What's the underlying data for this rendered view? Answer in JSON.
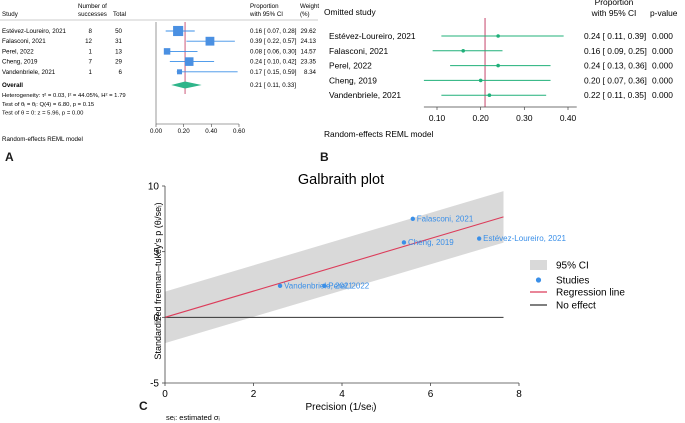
{
  "panel_labels": {
    "a": "A",
    "b": "B",
    "c": "C"
  },
  "chart_data": [
    {
      "type": "forest",
      "panel": "A",
      "headers": {
        "study": "Study",
        "successes": "Number of successes",
        "total": "Total",
        "prop": "Proportion with 95% CI",
        "weight": "Weight (%)"
      },
      "studies": [
        {
          "name": "Estévez-Loureiro, 2021",
          "successes": "8",
          "total": "50",
          "est": 0.16,
          "lo": 0.07,
          "hi": 0.28,
          "ci_text": "0.16 [ 0.07, 0.28]",
          "weight": "29.62",
          "weight_value": 29.62
        },
        {
          "name": "Falasconi, 2021",
          "successes": "12",
          "total": "31",
          "est": 0.39,
          "lo": 0.22,
          "hi": 0.57,
          "ci_text": "0.39 [ 0.22, 0.57]",
          "weight": "24.13",
          "weight_value": 24.13
        },
        {
          "name": "Perel, 2022",
          "successes": "1",
          "total": "13",
          "est": 0.08,
          "lo": 0.06,
          "hi": 0.3,
          "ci_text": "0.08 [ 0.06, 0.30]",
          "weight": "14.57",
          "weight_value": 14.57
        },
        {
          "name": "Cheng, 2019",
          "successes": "7",
          "total": "29",
          "est": 0.24,
          "lo": 0.1,
          "hi": 0.42,
          "ci_text": "0.24 [ 0.10, 0.42]",
          "weight": "23.35",
          "weight_value": 23.35
        },
        {
          "name": "Vandenbriele, 2021",
          "successes": "1",
          "total": "6",
          "est": 0.17,
          "lo": 0.15,
          "hi": 0.59,
          "ci_text": "0.17 [ 0.15, 0.59]",
          "weight": "8.34",
          "weight_value": 8.34
        }
      ],
      "overall": {
        "label": "Overall",
        "est": 0.21,
        "lo": 0.11,
        "hi": 0.33,
        "ci_text": "0.21 [ 0.11, 0.33]"
      },
      "stats": [
        "Heterogeneity: τ² = 0.03, I² = 44.05%, H² = 1.79",
        "Test of θᵢ = θⱼ: Q(4) = 6.80, p = 0.15",
        "Test of θ = 0: z = 5.96, p = 0.00"
      ],
      "xticks": [
        "0.00",
        "0.20",
        "0.40",
        "0.60"
      ],
      "xlim": [
        0,
        0.6
      ],
      "footnote": "Random-effects REML model"
    },
    {
      "type": "forest",
      "panel": "B",
      "headers": {
        "study": "Omitted study",
        "prop": "Proportion with 95% CI",
        "pvalue": "p-value"
      },
      "studies": [
        {
          "name": "Estévez-Loureiro, 2021",
          "est": 0.24,
          "lo": 0.11,
          "hi": 0.39,
          "ci_text": "0.24 [ 0.11, 0.39]",
          "p": "0.000"
        },
        {
          "name": "Falasconi, 2021",
          "est": 0.16,
          "lo": 0.09,
          "hi": 0.25,
          "ci_text": "0.16 [ 0.09, 0.25]",
          "p": "0.000"
        },
        {
          "name": "Perel, 2022",
          "est": 0.24,
          "lo": 0.13,
          "hi": 0.36,
          "ci_text": "0.24 [ 0.13, 0.36]",
          "p": "0.000"
        },
        {
          "name": "Cheng, 2019",
          "est": 0.2,
          "lo": 0.07,
          "hi": 0.36,
          "ci_text": "0.20 [ 0.07, 0.36]",
          "p": "0.000"
        },
        {
          "name": "Vandenbriele, 2021",
          "est": 0.22,
          "lo": 0.11,
          "hi": 0.35,
          "ci_text": "0.22 [ 0.11, 0.35]",
          "p": "0.000"
        }
      ],
      "refline": 0.21,
      "xticks": [
        "0.10",
        "0.20",
        "0.30",
        "0.40"
      ],
      "xlim": [
        0.07,
        0.42
      ],
      "footnote": "Random-effects REML model"
    },
    {
      "type": "scatter",
      "panel": "C",
      "title": "Galbraith plot",
      "xlabel": "Precision (1/seᵢ)",
      "ylabel": "Standardized freeman–tukey's p (θᵢ/seᵢ)",
      "xlim": [
        0,
        8
      ],
      "ylim": [
        -5,
        10
      ],
      "xticks": [
        "0",
        "2",
        "4",
        "6",
        "8"
      ],
      "yticks": [
        "-5",
        "0",
        "5",
        "10"
      ],
      "points": [
        {
          "label": "Falasconi, 2021",
          "x": 5.6,
          "y": 7.5
        },
        {
          "label": "Estévez-Loureiro, 2021",
          "x": 7.1,
          "y": 6.0
        },
        {
          "label": "Cheng, 2019",
          "x": 5.4,
          "y": 5.7
        },
        {
          "label": "Vandenbriele, 2021",
          "x": 2.6,
          "y": 2.4
        },
        {
          "label": "Perel, 2022",
          "x": 3.6,
          "y": 2.4
        }
      ],
      "regression": {
        "intercept": 0,
        "slope": 1.0,
        "x_end": 7.65
      },
      "ci_band_halfwidth": 1.96,
      "legend": [
        {
          "label": "95% CI",
          "kind": "band",
          "color": "#d9d9d9"
        },
        {
          "label": "Studies",
          "kind": "point",
          "color": "#3a8fe8"
        },
        {
          "label": "Regression line",
          "kind": "line",
          "color": "#dc3c5a"
        },
        {
          "label": "No effect",
          "kind": "line",
          "color": "#333333"
        }
      ],
      "legend_position": "right",
      "footnote": "seᵢ: estimated σᵢ"
    }
  ],
  "colors": {
    "square": "#4a90e2",
    "ci": "#3a8fe8",
    "overall": "#2fb58a",
    "refline": "#c0305a",
    "green": "#20b07a",
    "band": "#d9d9d9",
    "point": "#3a8fe8",
    "reg": "#dc3c5a"
  }
}
